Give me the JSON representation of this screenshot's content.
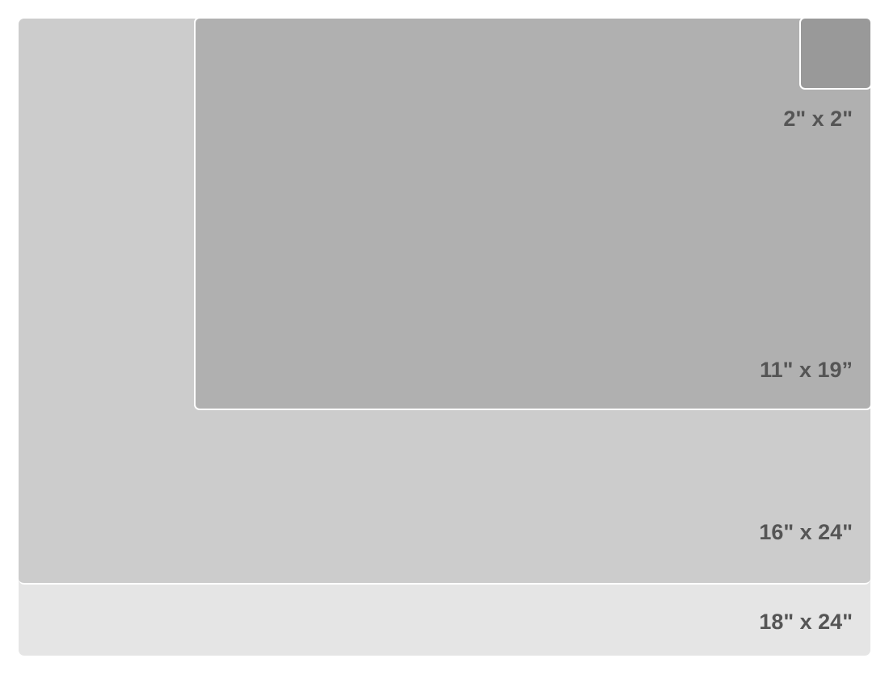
{
  "sizes": [
    {
      "label": "18\" x 24\"",
      "color": "#e5e5e5"
    },
    {
      "label": "16\" x 24\"",
      "color": "#cccccc"
    },
    {
      "label": "11\" x 19”",
      "color": "#b0b0b0"
    },
    {
      "label": "2\" x 2\"",
      "color": "#999999"
    }
  ],
  "label_color": "#555555"
}
